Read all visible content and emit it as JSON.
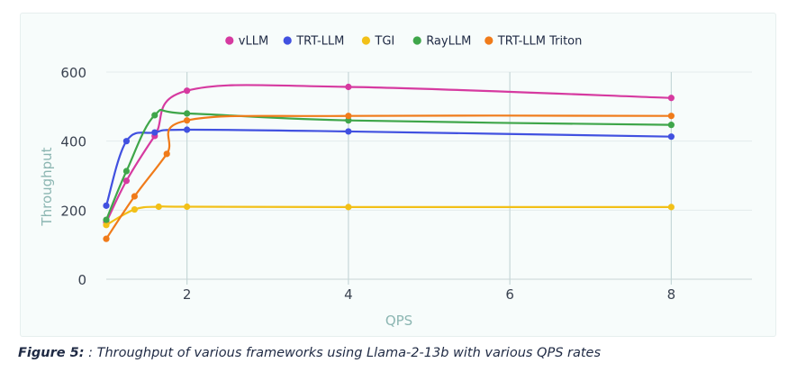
{
  "chart_data": {
    "type": "line",
    "xlabel": "QPS",
    "ylabel": "Throughput",
    "xlim": [
      1,
      9
    ],
    "ylim": [
      0,
      600
    ],
    "xticks": [
      2,
      4,
      6,
      8
    ],
    "yticks": [
      0,
      200,
      400,
      600
    ],
    "grid": true,
    "legend_position": "top",
    "series": [
      {
        "name": "vLLM",
        "color": "#d63aa0",
        "points": [
          [
            1.0,
            165
          ],
          [
            1.25,
            285
          ],
          [
            1.6,
            415
          ],
          [
            2.0,
            546
          ],
          [
            4.0,
            557
          ],
          [
            8.0,
            525
          ]
        ]
      },
      {
        "name": "TRT-LLM",
        "color": "#4151e0",
        "points": [
          [
            1.0,
            213
          ],
          [
            1.25,
            400
          ],
          [
            1.6,
            425
          ],
          [
            2.0,
            433
          ],
          [
            4.0,
            428
          ],
          [
            8.0,
            413
          ]
        ]
      },
      {
        "name": "TGI",
        "color": "#f2c018",
        "points": [
          [
            1.0,
            157
          ],
          [
            1.35,
            202
          ],
          [
            1.65,
            210
          ],
          [
            2.0,
            210
          ],
          [
            4.0,
            209
          ],
          [
            8.0,
            209
          ]
        ]
      },
      {
        "name": "RayLLM",
        "color": "#3fa64a",
        "points": [
          [
            1.0,
            172
          ],
          [
            1.25,
            313
          ],
          [
            1.6,
            475
          ],
          [
            2.0,
            480
          ],
          [
            4.0,
            460
          ],
          [
            8.0,
            447
          ]
        ]
      },
      {
        "name": "TRT-LLM Triton",
        "color": "#f07b1a",
        "points": [
          [
            1.0,
            117
          ],
          [
            1.35,
            240
          ],
          [
            1.75,
            363
          ],
          [
            2.0,
            460
          ],
          [
            4.0,
            473
          ],
          [
            8.0,
            473
          ]
        ]
      }
    ]
  },
  "caption": {
    "label": "Figure 5:",
    "text": " : Throughput of various frameworks using Llama-2-13b with various QPS rates"
  }
}
